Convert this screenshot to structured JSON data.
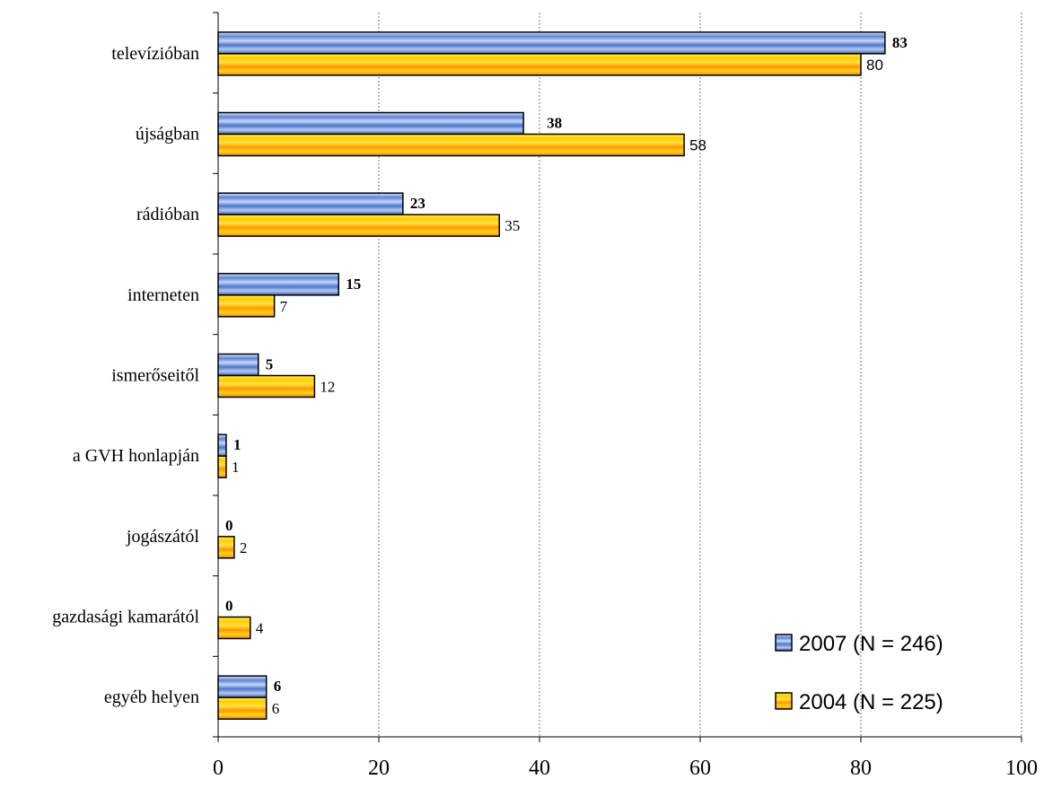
{
  "chart_data": {
    "type": "bar",
    "orientation": "horizontal",
    "categories": [
      "televízióban",
      "újságban",
      "rádióban",
      "interneten",
      "ismerőseitől",
      "a GVH honlapján",
      "jogászától",
      "gazdasági kamarától",
      "egyéb helyen"
    ],
    "series": [
      {
        "name": "2007 (N = 246)",
        "values": [
          83,
          38,
          23,
          15,
          5,
          1,
          0,
          0,
          6
        ],
        "color": "#6b8fd8"
      },
      {
        "name": "2004 (N = 225)",
        "values": [
          80,
          58,
          35,
          7,
          12,
          1,
          2,
          4,
          6
        ],
        "color": "#ffcc00"
      }
    ],
    "value_labels": {
      "2007": [
        "83",
        "38",
        "23",
        "15",
        "5",
        "1",
        "0",
        "0",
        "6"
      ],
      "2004": [
        "80",
        "58",
        "35",
        "7",
        "12",
        "1",
        "2",
        "4",
        "6"
      ]
    },
    "xlim": [
      0,
      100
    ],
    "xticks": [
      0,
      20,
      40,
      60,
      80,
      100
    ],
    "xtick_labels": [
      "0",
      "20",
      "40",
      "60",
      "80",
      "100"
    ],
    "grid": "vertical dashed",
    "legend_position": "bottom-right"
  }
}
